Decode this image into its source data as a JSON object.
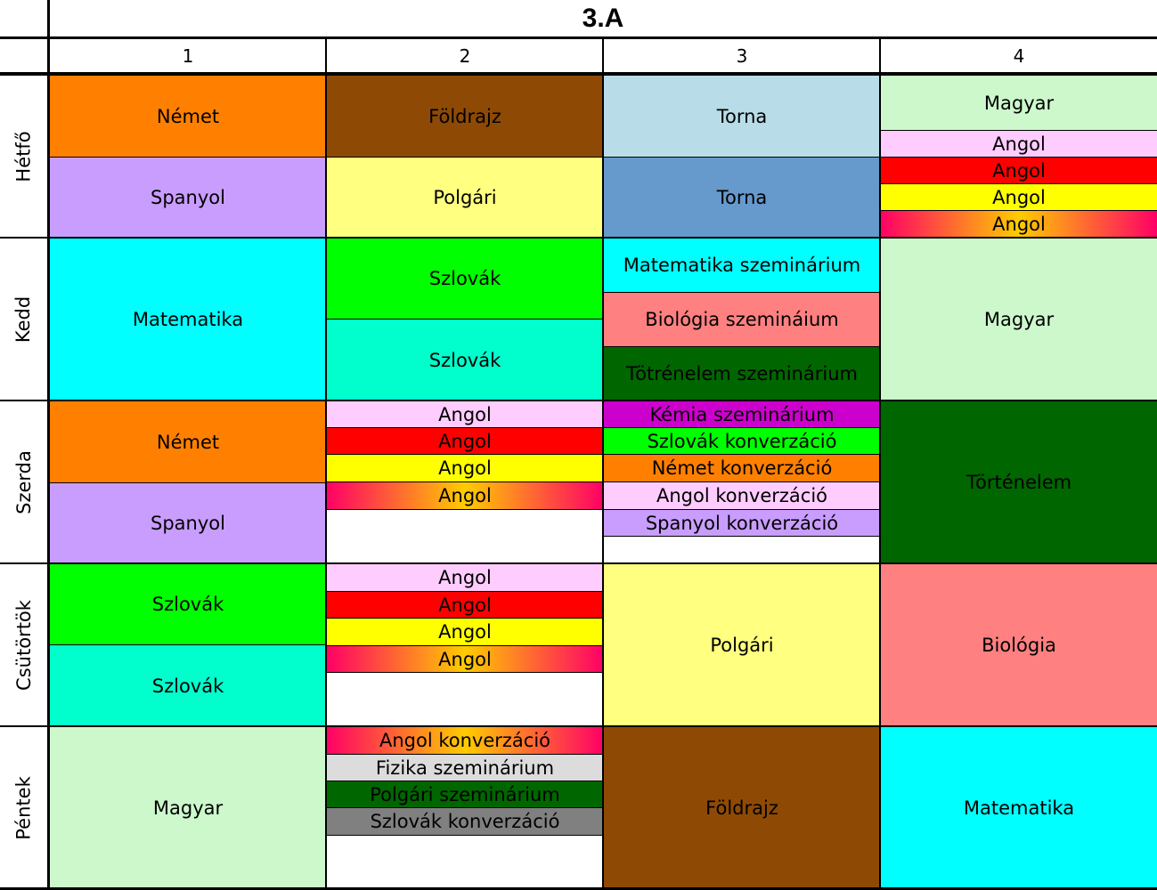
{
  "title": "3.A",
  "columns": [
    "1",
    "2",
    "3",
    "4"
  ],
  "days": [
    "Hétfő",
    "Kedd",
    "Szerda",
    "Csütörtök",
    "Péntek"
  ],
  "colors": {
    "orange": "#ff8000",
    "brown": "#8e4a05",
    "light_blue": "#b8dde8",
    "light_green": "#ccf8cc",
    "lilac": "#c99dfd",
    "pale_yellow": "#ffff80",
    "steel_blue": "#6699cc",
    "pink": "#ffccff",
    "red": "#ff0000",
    "yellow": "#ffff00",
    "cyan": "#00ffff",
    "bright_green": "#00ff00",
    "aquamarine": "#00ffcc",
    "salmon": "#ff8080",
    "dark_green": "#006600",
    "purple": "#cc00cc",
    "light_gray": "#dcdcdc",
    "gray": "#808080",
    "white": "#ffffff"
  },
  "grid": {
    "hetfo": {
      "c1a": "Német",
      "c1b": "Spanyol",
      "c2a": "Földrajz",
      "c2b": "Polgári",
      "c3a": "Torna",
      "c3b": "Torna",
      "c4a": "Magyar",
      "c4b": "Angol",
      "c4c": "Angol",
      "c4d": "Angol",
      "c4e": "Angol"
    },
    "kedd": {
      "c1": "Matematika",
      "c2a": "Szlovák",
      "c2b": "Szlovák",
      "c3a": "Matematika szeminárium",
      "c3b": "Biológia szemináium",
      "c3c": "Tötrénelem szeminárium",
      "c4": "Magyar"
    },
    "szerda": {
      "c1a": "Német",
      "c1b": "Spanyol",
      "c2a": "Angol",
      "c2b": "Angol",
      "c2c": "Angol",
      "c2d": "Angol",
      "c3a": "Kémia szeminárium",
      "c3b": "Szlovák konverzáció",
      "c3c": "Német konverzáció",
      "c3d": "Angol konverzáció",
      "c3e": "Spanyol konverzáció",
      "c4": "Történelem"
    },
    "csutortok": {
      "c1a": "Szlovák",
      "c1b": "Szlovák",
      "c2a": "Angol",
      "c2b": "Angol",
      "c2c": "Angol",
      "c2d": "Angol",
      "c3": "Polgári",
      "c4": "Biológia"
    },
    "pentek": {
      "c1": "Magyar",
      "c2a": "Angol konverzáció",
      "c2b": "Fizika szeminárium",
      "c2c": "Polgári szeminárium",
      "c2d": "Szlovák konverzáció",
      "c3": "Földrajz",
      "c4": "Matematika"
    }
  }
}
